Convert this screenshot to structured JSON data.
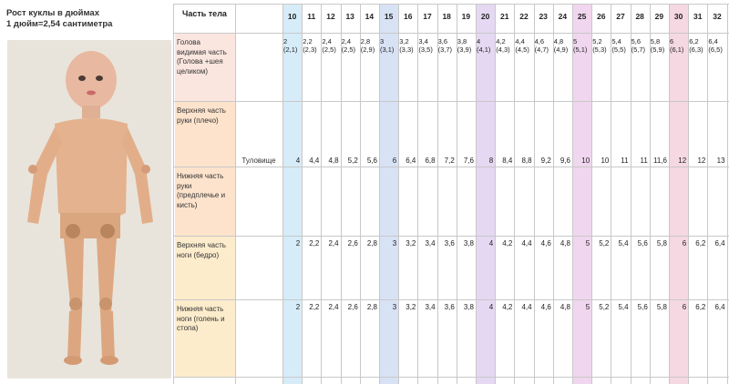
{
  "title_line1": "Рост куклы в дюймах",
  "title_line2": "1 дюйм=2,54 сантиметра",
  "header_part": "Часть тела",
  "columns": [
    "10",
    "11",
    "12",
    "13",
    "14",
    "15",
    "16",
    "17",
    "18",
    "19",
    "20",
    "21",
    "22",
    "23",
    "24",
    "25",
    "26",
    "27",
    "28",
    "29",
    "30",
    "31",
    "32"
  ],
  "highlight_colors": {
    "10": "#d6ecf8",
    "15": "#d8e2f5",
    "20": "#e4d8f2",
    "25": "#f0d6ee",
    "30": "#f5d8e2"
  },
  "rows": [
    {
      "id": "head",
      "label": "Голова видимая часть (Голова +шея целиком)",
      "color": "#fbe6df",
      "values": [
        "2 (2,1)",
        "2,2 (2,3)",
        "2,4 (2,5)",
        "2,4 (2,5)",
        "2,8 (2,9)",
        "3 (3,1)",
        "3,2 (3,3)",
        "3,4 (3,5)",
        "3,6 (3,7)",
        "3,8 (3,9)",
        "4 (4,1)",
        "4,2 (4,3)",
        "4,4 (4,5)",
        "4,6 (4,7)",
        "4,8 (4,9)",
        "5 (5,1)",
        "5,2 (5,3)",
        "5,4 (5,5)",
        "5,6 (5,7)",
        "5,8 (5,9)",
        "6 (6,1)",
        "6,2 (6,3)",
        "6,4 (6,5)"
      ]
    },
    {
      "id": "upper_arm",
      "label": "Верхняя часть руки (плечо)",
      "color": "#fde3cc"
    },
    {
      "id": "lower_arm",
      "label": "Нижняя часть руки (предплечье и кисть)",
      "color": "#fde3cc"
    },
    {
      "id": "upper_leg",
      "label": "Верхняя часть ноги (бедро)",
      "color": "#fdeccc",
      "values": [
        "2",
        "2,2",
        "2,4",
        "2,6",
        "2,8",
        "3",
        "3,2",
        "3,4",
        "3,6",
        "3,8",
        "4",
        "4,2",
        "4,4",
        "4,6",
        "4,8",
        "5",
        "5,2",
        "5,4",
        "5,6",
        "5,8",
        "6",
        "6,2",
        "6,4"
      ]
    },
    {
      "id": "lower_leg",
      "label": "Нижняя часть ноги (голень и стопа)",
      "color": "#fdeccc",
      "values": [
        "2",
        "2,2",
        "2,4",
        "2,6",
        "2,8",
        "3",
        "3,2",
        "3,4",
        "3,6",
        "3,8",
        "4",
        "4,2",
        "4,4",
        "4,6",
        "4,8",
        "5",
        "5,2",
        "5,4",
        "5,6",
        "5,8",
        "6",
        "6,2",
        "6,4"
      ]
    }
  ],
  "torso_label": "Туловище",
  "torso_values": [
    "4",
    "4,4",
    "4,8",
    "5,2",
    "5,6",
    "6",
    "6,4",
    "6,8",
    "7,2",
    "7,6",
    "8",
    "8,4",
    "8,8",
    "9,2",
    "9,6",
    "10",
    "10",
    "11",
    "11",
    "11,6",
    "12",
    "12",
    "13"
  ]
}
